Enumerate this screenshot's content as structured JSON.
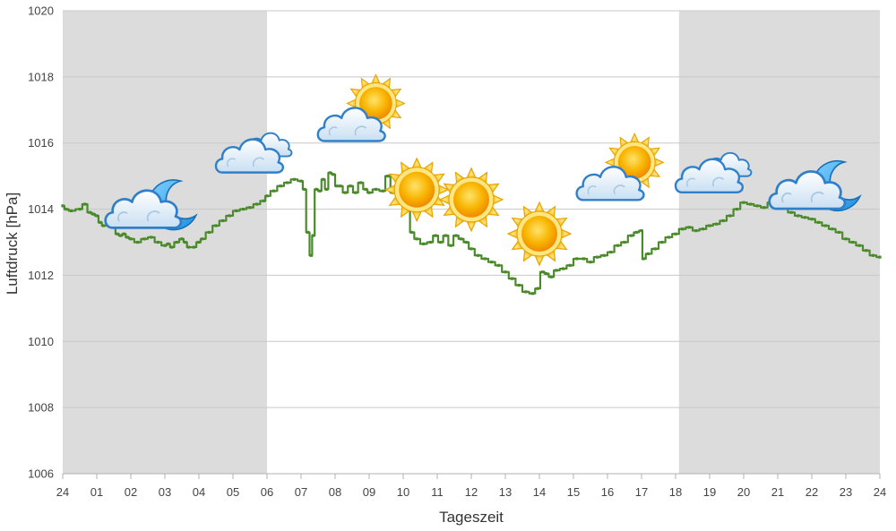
{
  "chart_data": {
    "type": "line",
    "title": "",
    "xlabel": "Tageszeit",
    "ylabel": "Luftdruck [hPa]",
    "ylim": [
      1006,
      1020
    ],
    "xlim": [
      0,
      24
    ],
    "y_ticks": [
      "1006",
      "1008",
      "1010",
      "1012",
      "1014",
      "1016",
      "1018",
      "1020"
    ],
    "x_ticks": [
      "24",
      "01",
      "02",
      "03",
      "04",
      "05",
      "06",
      "07",
      "08",
      "09",
      "10",
      "11",
      "12",
      "13",
      "14",
      "15",
      "16",
      "17",
      "18",
      "19",
      "20",
      "21",
      "22",
      "23",
      "24"
    ],
    "grid": true,
    "night_shading": [
      [
        0,
        6
      ],
      [
        18.1,
        24
      ]
    ],
    "series": [
      {
        "color": "#4a8a2a",
        "x": [
          0,
          0.1,
          0.25,
          0.5,
          0.65,
          0.8,
          0.9,
          1.0,
          1.1,
          1.2,
          1.35,
          1.5,
          1.6,
          1.7,
          1.8,
          1.9,
          2.0,
          2.2,
          2.4,
          2.6,
          2.8,
          3.0,
          3.1,
          3.2,
          3.35,
          3.5,
          3.6,
          3.7,
          3.85,
          4.0,
          4.1,
          4.3,
          4.5,
          4.7,
          4.9,
          5.1,
          5.3,
          5.5,
          5.7,
          5.9,
          6.0,
          6.2,
          6.4,
          6.6,
          6.8,
          7.0,
          7.1,
          7.2,
          7.3,
          7.35,
          7.45,
          7.55,
          7.65,
          7.75,
          7.85,
          7.95,
          8.05,
          8.15,
          8.3,
          8.45,
          8.6,
          8.75,
          8.9,
          9.0,
          9.2,
          9.4,
          9.55,
          9.7,
          9.8,
          9.9,
          10.05,
          10.15,
          10.25,
          10.4,
          10.6,
          10.8,
          10.95,
          11.1,
          11.25,
          11.4,
          11.55,
          11.7,
          11.85,
          12.0,
          12.2,
          12.4,
          12.6,
          12.8,
          13.0,
          13.2,
          13.4,
          13.6,
          13.8,
          13.95,
          14.1,
          14.2,
          14.35,
          14.5,
          14.7,
          14.9,
          15.1,
          15.3,
          15.5,
          15.7,
          15.9,
          16.1,
          16.3,
          16.5,
          16.7,
          16.85,
          17.0,
          17.05,
          17.2,
          17.4,
          17.6,
          17.8,
          18.0,
          18.2,
          18.4,
          18.6,
          18.8,
          19.0,
          19.2,
          19.4,
          19.6,
          19.8,
          20.0,
          20.2,
          20.4,
          20.6,
          20.8,
          21.0,
          21.2,
          21.4,
          21.6,
          21.8,
          22.0,
          22.2,
          22.4,
          22.6,
          22.8,
          23.0,
          23.2,
          23.4,
          23.6,
          23.8,
          24.0
        ],
        "y": [
          1014.1,
          1014.0,
          1013.95,
          1014.0,
          1014.15,
          1013.9,
          1013.85,
          1013.8,
          1013.6,
          1013.5,
          1013.6,
          1013.5,
          1013.25,
          1013.2,
          1013.25,
          1013.15,
          1013.1,
          1013.0,
          1013.1,
          1013.15,
          1013.0,
          1012.9,
          1012.95,
          1012.85,
          1013.0,
          1013.1,
          1013.0,
          1012.85,
          1012.85,
          1013.0,
          1013.1,
          1013.3,
          1013.5,
          1013.65,
          1013.8,
          1013.95,
          1014.0,
          1014.05,
          1014.15,
          1014.25,
          1014.4,
          1014.55,
          1014.7,
          1014.8,
          1014.9,
          1014.85,
          1014.6,
          1013.3,
          1012.6,
          1013.2,
          1014.6,
          1014.55,
          1014.9,
          1014.6,
          1015.1,
          1015.05,
          1014.7,
          1014.7,
          1014.5,
          1014.7,
          1014.5,
          1014.8,
          1014.6,
          1014.5,
          1014.6,
          1014.55,
          1015.0,
          1014.5,
          1014.7,
          1014.3,
          1014.5,
          1014.2,
          1013.3,
          1013.1,
          1012.95,
          1013.0,
          1013.2,
          1013.0,
          1013.2,
          1012.9,
          1013.2,
          1013.1,
          1013.0,
          1012.8,
          1012.6,
          1012.5,
          1012.4,
          1012.3,
          1012.1,
          1011.9,
          1011.7,
          1011.5,
          1011.45,
          1011.6,
          1012.1,
          1012.05,
          1011.95,
          1012.15,
          1012.2,
          1012.3,
          1012.5,
          1012.5,
          1012.4,
          1012.55,
          1012.6,
          1012.7,
          1012.9,
          1013.0,
          1013.2,
          1013.3,
          1013.35,
          1012.5,
          1012.65,
          1012.8,
          1013.0,
          1013.15,
          1013.25,
          1013.4,
          1013.45,
          1013.35,
          1013.4,
          1013.5,
          1013.55,
          1013.65,
          1013.8,
          1014.0,
          1014.2,
          1014.15,
          1014.1,
          1014.05,
          1014.2,
          1014.3,
          1014.2,
          1013.9,
          1013.8,
          1013.75,
          1013.7,
          1013.6,
          1013.5,
          1013.4,
          1013.3,
          1013.1,
          1013.0,
          1012.9,
          1012.75,
          1012.6,
          1012.55
        ]
      }
    ],
    "weather_icons": [
      {
        "x": 2.5,
        "icon": "moon-cloud-icon"
      },
      {
        "x": 5.7,
        "icon": "cloud-icon"
      },
      {
        "x": 8.8,
        "icon": "sun-behind-cloud-icon"
      },
      {
        "x": 10.4,
        "icon": "sun-icon"
      },
      {
        "x": 12.0,
        "icon": "sun-icon"
      },
      {
        "x": 14.0,
        "icon": "sun-icon"
      },
      {
        "x": 16.4,
        "icon": "sun-behind-cloud-icon"
      },
      {
        "x": 19.2,
        "icon": "cloud-icon"
      },
      {
        "x": 22.0,
        "icon": "moon-cloud-icon"
      }
    ],
    "colors": {
      "line": "#4a8a2a",
      "night_band": "#dcdcdc",
      "grid": "#c8c8c8"
    }
  }
}
